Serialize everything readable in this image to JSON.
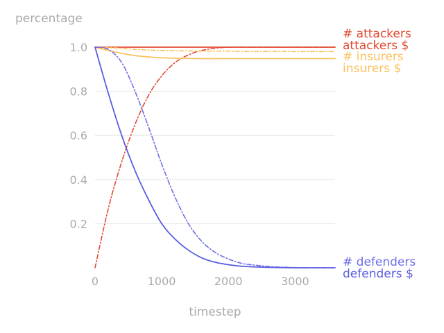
{
  "chart_data": {
    "type": "line",
    "title": "",
    "xlabel": "timestep",
    "ylabel": "percentage",
    "xlim": [
      0,
      3600
    ],
    "ylim": [
      0,
      1.0
    ],
    "grid": "horizontal",
    "legend_placement": "right of plot, labels at line ends",
    "x_ticks": [
      {
        "value": 0,
        "label": "0"
      },
      {
        "value": 1000,
        "label": "1000"
      },
      {
        "value": 2000,
        "label": "2000"
      },
      {
        "value": 3000,
        "label": "3000"
      }
    ],
    "y_ticks": [
      {
        "value": 0.2,
        "label": "0.2"
      },
      {
        "value": 0.4,
        "label": "0.4"
      },
      {
        "value": 0.6,
        "label": "0.6"
      },
      {
        "value": 0.8,
        "label": "0.8"
      },
      {
        "value": 1.0,
        "label": "1.0"
      }
    ],
    "x": [
      0,
      200,
      400,
      600,
      800,
      1000,
      1200,
      1400,
      1600,
      1800,
      2000,
      2200,
      2400,
      2600,
      2800,
      3000,
      3200,
      3400,
      3600
    ],
    "series": [
      {
        "name": "# attackers",
        "color": "#e24a33",
        "style": "dashdot",
        "values": [
          0.0,
          0.27,
          0.48,
          0.65,
          0.78,
          0.87,
          0.93,
          0.965,
          0.985,
          0.995,
          1.0,
          1.0,
          1.0,
          1.0,
          1.0,
          1.0,
          1.0,
          1.0,
          1.0
        ]
      },
      {
        "name": "attackers $",
        "color": "#e24a33",
        "style": "solid",
        "values": [
          1.0,
          1.0,
          1.0,
          1.0,
          1.0,
          1.0,
          1.0,
          1.0,
          1.0,
          1.0,
          1.0,
          1.0,
          1.0,
          1.0,
          1.0,
          1.0,
          1.0,
          1.0,
          1.0
        ]
      },
      {
        "name": "# insurers",
        "color": "#fbc15e",
        "style": "dashdot",
        "values": [
          1.0,
          0.998,
          0.995,
          0.99,
          0.987,
          0.985,
          0.984,
          0.983,
          0.982,
          0.982,
          0.982,
          0.981,
          0.981,
          0.981,
          0.981,
          0.98,
          0.98,
          0.98,
          0.98
        ]
      },
      {
        "name": "insurers $",
        "color": "#fbc15e",
        "style": "solid",
        "values": [
          1.0,
          0.985,
          0.972,
          0.962,
          0.956,
          0.952,
          0.95,
          0.949,
          0.948,
          0.948,
          0.948,
          0.948,
          0.948,
          0.948,
          0.948,
          0.948,
          0.948,
          0.948,
          0.948
        ]
      },
      {
        "name": "# defenders",
        "color": "#6d6ee8",
        "style": "dashdot",
        "values": [
          1.0,
          0.99,
          0.93,
          0.8,
          0.64,
          0.47,
          0.32,
          0.2,
          0.12,
          0.07,
          0.04,
          0.02,
          0.012,
          0.006,
          0.003,
          0.001,
          0.0,
          0.0,
          0.0
        ]
      },
      {
        "name": "defenders $",
        "color": "#5a5ee0",
        "style": "solid",
        "values": [
          1.0,
          0.79,
          0.6,
          0.44,
          0.31,
          0.2,
          0.13,
          0.08,
          0.045,
          0.025,
          0.014,
          0.007,
          0.004,
          0.002,
          0.001,
          0.0,
          0.0,
          0.0,
          0.0
        ]
      }
    ]
  }
}
